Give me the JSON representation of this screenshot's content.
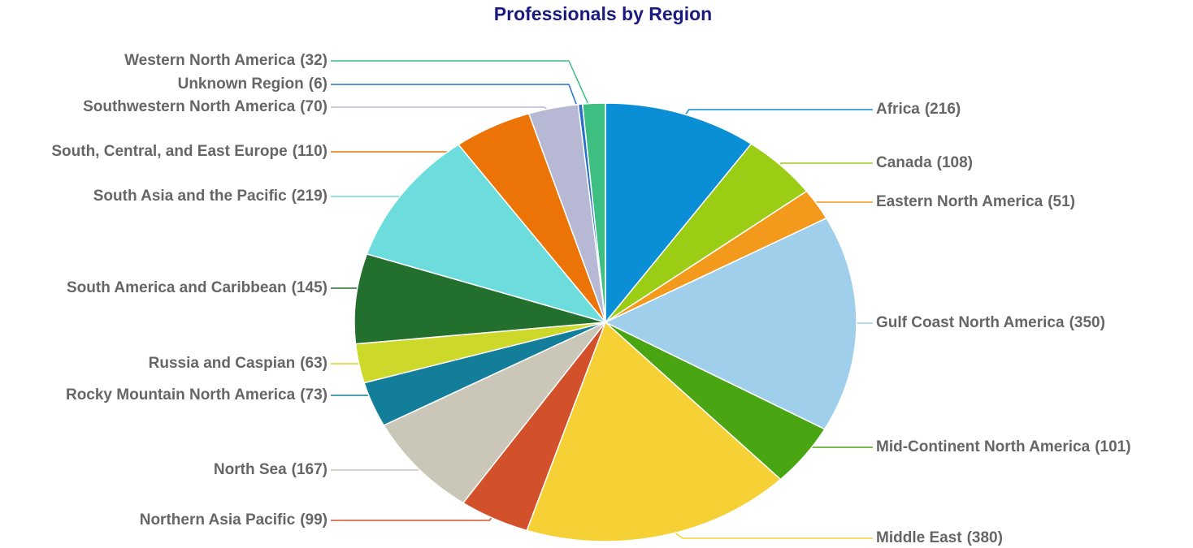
{
  "chart_data": {
    "type": "pie",
    "title": "Professionals by Region",
    "categories": [
      "Africa",
      "Canada",
      "Eastern North America",
      "Gulf Coast North America",
      "Mid-Continent North America",
      "Middle East",
      "Northern Asia Pacific",
      "North Sea",
      "Rocky Mountain North America",
      "Russia and Caspian",
      "South America and Caribbean",
      "South Asia and the Pacific",
      "South, Central, and East Europe",
      "Southwestern North America",
      "Unknown Region",
      "Western North America"
    ],
    "values": [
      216,
      108,
      51,
      350,
      101,
      380,
      99,
      167,
      73,
      63,
      145,
      219,
      110,
      70,
      6,
      32
    ],
    "value_labels": [
      "(216)",
      "(108)",
      "(51)",
      "(350)",
      "(101)",
      "(380)",
      "(99)",
      "(167)",
      "(73)",
      "(63)",
      "(145)",
      "(219)",
      "(110)",
      "(70)",
      "(6)",
      "(32)"
    ],
    "colors": [
      "#0a8fd6",
      "#9acd14",
      "#f39a1c",
      "#9fcfeb",
      "#4aa512",
      "#f6d136",
      "#d2502a",
      "#cac7b8",
      "#127e9a",
      "#cdd92a",
      "#236f2d",
      "#6cdcdc",
      "#ec7407",
      "#b6b8d4",
      "#2670c8",
      "#3cbf80"
    ]
  }
}
